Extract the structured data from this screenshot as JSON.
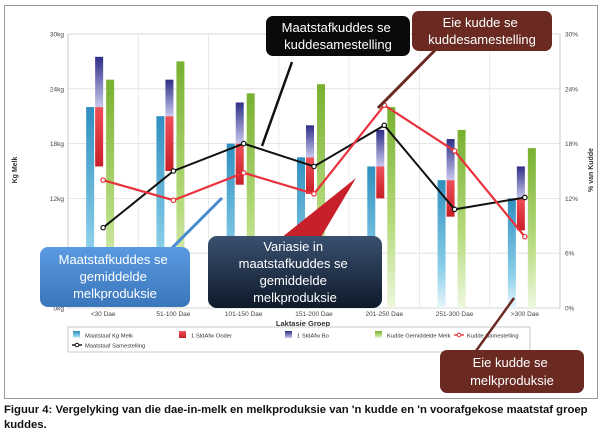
{
  "chart_data": {
    "type": "bar",
    "xlabel": "Laktasie Groep",
    "ylabel": "Kg Melk",
    "y2label": "% van Kudde",
    "ylim": [
      0,
      30
    ],
    "y2lim": [
      0,
      30
    ],
    "yticks": [
      "0kg",
      "6kg",
      "12kg",
      "18kg",
      "24kg",
      "30kg"
    ],
    "y2ticks": [
      "0%",
      "6%",
      "12%",
      "18%",
      "24%",
      "30%"
    ],
    "categories": [
      "<30 Dae",
      "51-100 Dae",
      "101-150 Dae",
      "151-200 Dae",
      "201-250 Dae",
      "251-300 Dae",
      ">300 Dae"
    ],
    "grid": true,
    "legend_position": "bottom",
    "series": [
      {
        "name": "Maatstaaf Kg Melk",
        "values": [
          22,
          21,
          18,
          16.5,
          15.5,
          14,
          12
        ],
        "color": "#3aa0c8"
      },
      {
        "name": "1 StdAfw Onder",
        "values": [
          15.5,
          15,
          13.5,
          12.5,
          12,
          10,
          8.5
        ],
        "color": "#e8323c"
      },
      {
        "name": "1 StdAfw Bo",
        "values": [
          27.5,
          25,
          22.5,
          20,
          19.5,
          18.5,
          15.5
        ],
        "color": "#3c3c96"
      },
      {
        "name": "Kudde Gemiddelde Melk",
        "values": [
          25,
          27,
          23.5,
          24.5,
          22,
          19.5,
          17.5
        ],
        "color": "#8cbe3c"
      },
      {
        "name": "Kudde Samestelling",
        "type": "line",
        "axis": "right",
        "values": [
          14,
          11.8,
          14.8,
          12.5,
          22.2,
          17.2,
          7.8
        ],
        "color": "#e8323c"
      },
      {
        "name": "Maatstaaf Samestelling",
        "type": "line",
        "axis": "right",
        "values": [
          8.8,
          15,
          18,
          15.5,
          20,
          10.8,
          12.1
        ],
        "color": "#111111"
      }
    ]
  },
  "callouts": {
    "maatstaf_samestelling": [
      "Maatstafkuddes se",
      "kuddesamestelling"
    ],
    "eie_samestelling": [
      "Eie kudde se",
      "kuddesamestelling"
    ],
    "maatstaf_melk": [
      "Maatstafkuddes se",
      "gemiddelde",
      "melkproduksie"
    ],
    "variasie": [
      "Variasie in",
      "maatstafkuddes se",
      "gemiddelde",
      "melkproduksie"
    ],
    "eie_melk": [
      "Eie kudde se",
      "melkproduksie"
    ]
  },
  "caption": "Figuur 4: Vergelyking van die dae-in-melk en melkproduksie van 'n kudde en 'n voorafgekose maatstaf groep kuddes.",
  "colors": {
    "callout_black": "#0a0a0a",
    "callout_brown": "#6a2a22",
    "callout_blue": "#4a8ad0",
    "callout_navy": "#1e3048"
  }
}
